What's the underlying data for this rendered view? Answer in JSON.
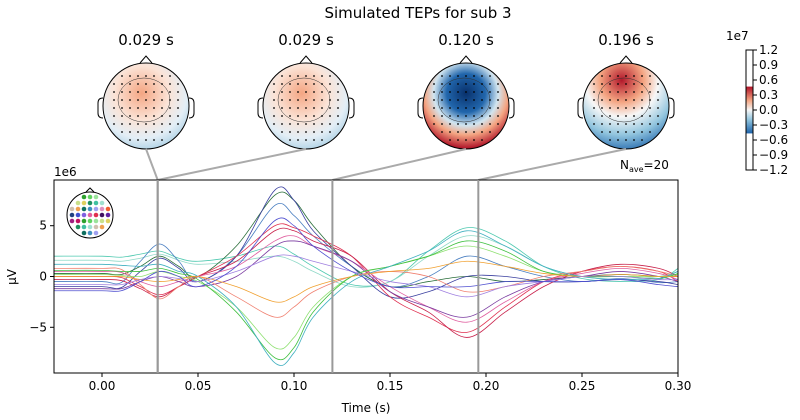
{
  "chart_data": {
    "type": "line",
    "title": "Simulated TEPs for sub 3",
    "xlabel": "Time (s)",
    "ylabel": "µV",
    "y_scale_label": "1e6",
    "xlim": [
      -0.025,
      0.3
    ],
    "ylim": [
      -9.5,
      9.5
    ],
    "x_ticks": [
      "0.00",
      "0.05",
      "0.10",
      "0.15",
      "0.20",
      "0.25",
      "0.30"
    ],
    "x_tick_values": [
      0,
      0.05,
      0.1,
      0.15,
      0.2,
      0.25,
      0.3
    ],
    "y_ticks": [
      "−5",
      "0",
      "5"
    ],
    "y_tick_values": [
      -5,
      0,
      5
    ],
    "nave_label": "N",
    "nave_sub": "ave",
    "nave_value": "=20",
    "grid": false,
    "times": [
      -0.025,
      0,
      0.01,
      0.02,
      0.03,
      0.04,
      0.05,
      0.07,
      0.09,
      0.1,
      0.11,
      0.13,
      0.15,
      0.17,
      0.19,
      0.21,
      0.23,
      0.25,
      0.27,
      0.29,
      0.3
    ],
    "series": [
      {
        "color": "#4fc9b0",
        "values": [
          2,
          2,
          1.9,
          2.2,
          2.5,
          1.8,
          1.5,
          2,
          3,
          2.2,
          1,
          -0.8,
          -0.5,
          2.5,
          4.8,
          3.5,
          1,
          -0.2,
          -0.5,
          -0.3,
          0.8
        ]
      },
      {
        "color": "#8fd9c8",
        "values": [
          1.6,
          1.6,
          1.5,
          1.8,
          2.2,
          1.6,
          1.2,
          1.5,
          2,
          1.5,
          0.5,
          -1,
          -0.5,
          2,
          4,
          3,
          1,
          0,
          -0.3,
          0,
          0.5
        ]
      },
      {
        "color": "#4a7fc1",
        "values": [
          -0.5,
          -0.5,
          -0.6,
          1.5,
          3.2,
          1.5,
          -0.5,
          2,
          7,
          6,
          4,
          1,
          -1,
          0,
          2,
          1,
          0,
          -0.5,
          -0.2,
          -0.6,
          -0.5
        ]
      },
      {
        "color": "#2a6e3a",
        "values": [
          0.3,
          0.3,
          0.2,
          1,
          2,
          1,
          0,
          3,
          8,
          7.5,
          5,
          1,
          -1,
          -0.5,
          0,
          -0.5,
          -0.3,
          0,
          0.2,
          0,
          0
        ]
      },
      {
        "color": "#3a3f9f",
        "values": [
          -1,
          -1,
          -1.1,
          0.5,
          1.8,
          0.8,
          -0.5,
          2,
          8.5,
          7.5,
          4.5,
          1,
          -2,
          -1.5,
          0,
          0,
          -0.5,
          -0.5,
          -0.3,
          -0.5,
          -0.8
        ]
      },
      {
        "color": "#e03050",
        "values": [
          0,
          0,
          -0.1,
          -1,
          -1.8,
          -1,
          0,
          2,
          5,
          4.8,
          4,
          2,
          -2,
          -4,
          -5.5,
          -3,
          -0.5,
          0.5,
          1,
          0.5,
          -0.5
        ]
      },
      {
        "color": "#c8204a",
        "values": [
          -0.3,
          -0.3,
          -0.4,
          -1.2,
          -2,
          -1,
          0,
          1.5,
          4.5,
          4.5,
          3.5,
          2,
          -1.5,
          -3.5,
          -6,
          -3.5,
          -1,
          0.5,
          1.2,
          0.8,
          0
        ]
      },
      {
        "color": "#e060a0",
        "values": [
          0.5,
          0.5,
          0.4,
          -0.5,
          -1,
          -0.5,
          0,
          1,
          3.5,
          4,
          3,
          1.5,
          -1,
          -3,
          -4.5,
          -2.5,
          -0.5,
          0.3,
          0.8,
          0.3,
          -0.3
        ]
      },
      {
        "color": "#7a3aa0",
        "values": [
          -1.2,
          -1.2,
          -1.2,
          -0.5,
          0,
          -0.5,
          -1,
          0,
          3,
          3.5,
          3,
          1.5,
          -1.5,
          -3,
          -4,
          -2,
          -0.5,
          0,
          0.5,
          0,
          -0.5
        ]
      },
      {
        "color": "#f08070",
        "values": [
          0.8,
          0.8,
          0.7,
          -0.8,
          -2.2,
          -1,
          0,
          -2,
          -4,
          -3,
          -1.5,
          0,
          0.5,
          0,
          -1.5,
          -1,
          0,
          0.5,
          1,
          0.5,
          0
        ]
      },
      {
        "color": "#8ee070",
        "values": [
          0.2,
          0.2,
          0.1,
          0,
          0.5,
          0,
          -0.5,
          -3,
          -7,
          -6,
          -3,
          0,
          1,
          2,
          3,
          2,
          0.5,
          0,
          0,
          0,
          0.2
        ]
      },
      {
        "color": "#40c040",
        "values": [
          0.6,
          0.6,
          0.5,
          0.5,
          0.8,
          0.3,
          -0.3,
          -3.5,
          -8,
          -7,
          -3.5,
          0,
          1,
          2,
          3.5,
          2.5,
          0.5,
          0,
          0,
          -0.2,
          0.3
        ]
      },
      {
        "color": "#40b0c0",
        "values": [
          1.2,
          1.2,
          1.1,
          1,
          1.2,
          0.5,
          0,
          -3,
          -8.5,
          -7.5,
          -4,
          -0.5,
          1,
          2.5,
          4.5,
          3,
          1,
          0,
          -0.3,
          -0.2,
          0.5
        ]
      },
      {
        "color": "#f0a030",
        "values": [
          0,
          0,
          0,
          -0.3,
          -0.5,
          -0.3,
          0,
          -1,
          -2.5,
          -2,
          -1,
          0,
          0.5,
          0.8,
          1.5,
          1,
          0.3,
          0,
          0.2,
          0,
          0
        ]
      },
      {
        "color": "#a080e0",
        "values": [
          -0.8,
          -0.8,
          -0.8,
          -0.3,
          0,
          -0.2,
          -0.5,
          0.5,
          2,
          2,
          1.5,
          0.5,
          -0.5,
          -1,
          -2,
          -1,
          -0.5,
          0,
          0,
          -0.3,
          -0.3
        ]
      },
      {
        "color": "#5050d0",
        "values": [
          -1.4,
          -1.4,
          -1.4,
          -0.5,
          0.5,
          0,
          -1,
          1,
          5.5,
          5,
          3,
          0.5,
          -1,
          -1,
          -1,
          -0.5,
          -0.5,
          -0.5,
          -0.3,
          -0.8,
          -1
        ]
      }
    ],
    "topomaps": [
      {
        "title": "0.029 s",
        "time": 0.029,
        "pattern": "weak-frontal-positive"
      },
      {
        "title": "0.029 s",
        "time": 0.029,
        "pattern": "weak-frontal-positive"
      },
      {
        "title": "0.120 s",
        "time": 0.12,
        "pattern": "strong-central-negative"
      },
      {
        "title": "0.196 s",
        "time": 0.196,
        "pattern": "frontal-positive-posterior-negative"
      }
    ],
    "colorbar": {
      "scale_label": "1e7",
      "ticks": [
        "1.2",
        "0.9",
        "0.6",
        "0.3",
        "0.0",
        "−0.3",
        "−0.6",
        "−0.9",
        "−1.2"
      ],
      "range": [
        -1.2,
        1.2
      ],
      "colormap": "RdBu_r"
    }
  }
}
